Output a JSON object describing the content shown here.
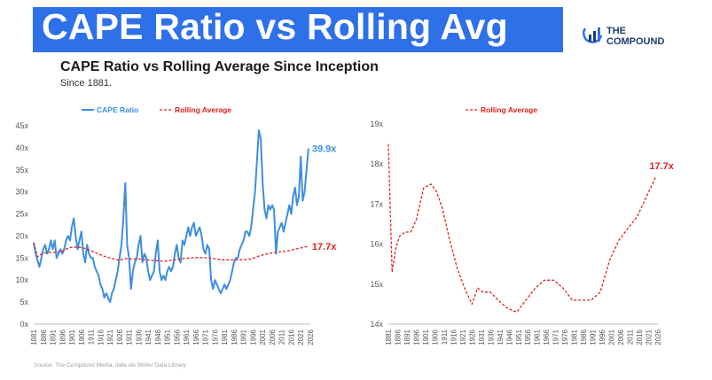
{
  "header": {
    "banner_title": "CAPE Ratio vs Rolling Avg",
    "subtitle": "CAPE Ratio vs Rolling Average Since Inception",
    "subnote": "Since 1881.",
    "logo_line1": "THE",
    "logo_line2": "COMPOUND",
    "source": "Source: The Compound Media, data via Shiller Data Library"
  },
  "colors": {
    "banner": "#2e70e8",
    "cape": "#3d8ee0",
    "rolling": "#e02020"
  },
  "chart_data": [
    {
      "type": "line",
      "title": "",
      "legend": [
        "CAPE Ratio",
        "Rolling Average"
      ],
      "legend_position": "top",
      "ylim": [
        0,
        45
      ],
      "yticks": [
        "0x",
        "5x",
        "10x",
        "15x",
        "20x",
        "25x",
        "30x",
        "35x",
        "40x",
        "45x"
      ],
      "xlim": [
        1881,
        2026
      ],
      "xticks": [
        "1881",
        "1886",
        "1891",
        "1896",
        "1901",
        "1906",
        "1911",
        "1916",
        "1921",
        "1926",
        "1931",
        "1936",
        "1941",
        "1946",
        "1951",
        "1956",
        "1961",
        "1966",
        "1971",
        "1976",
        "1981",
        "1986",
        "1991",
        "1996",
        "2001",
        "2006",
        "2011",
        "2016",
        "2021",
        "2026"
      ],
      "series": [
        {
          "name": "CAPE Ratio",
          "x": [
            1881,
            1882,
            1883,
            1884,
            1885,
            1886,
            1887,
            1888,
            1889,
            1890,
            1891,
            1892,
            1893,
            1894,
            1895,
            1896,
            1897,
            1898,
            1899,
            1900,
            1901,
            1902,
            1903,
            1904,
            1905,
            1906,
            1907,
            1908,
            1909,
            1910,
            1911,
            1912,
            1913,
            1914,
            1915,
            1916,
            1917,
            1918,
            1919,
            1920,
            1921,
            1922,
            1923,
            1924,
            1925,
            1926,
            1927,
            1928,
            1929,
            1930,
            1931,
            1932,
            1933,
            1934,
            1935,
            1936,
            1937,
            1938,
            1939,
            1940,
            1941,
            1942,
            1943,
            1944,
            1945,
            1946,
            1947,
            1948,
            1949,
            1950,
            1951,
            1952,
            1953,
            1954,
            1955,
            1956,
            1957,
            1958,
            1959,
            1960,
            1961,
            1962,
            1963,
            1964,
            1965,
            1966,
            1967,
            1968,
            1969,
            1970,
            1971,
            1972,
            1973,
            1974,
            1975,
            1976,
            1977,
            1978,
            1979,
            1980,
            1981,
            1982,
            1983,
            1984,
            1985,
            1986,
            1987,
            1988,
            1989,
            1990,
            1991,
            1992,
            1993,
            1994,
            1995,
            1996,
            1997,
            1998,
            1999,
            2000,
            2001,
            2002,
            2003,
            2004,
            2005,
            2006,
            2007,
            2008,
            2009,
            2010,
            2011,
            2012,
            2013,
            2014,
            2015,
            2016,
            2017,
            2018,
            2019,
            2020,
            2021,
            2022,
            2023,
            2024,
            2025
          ],
          "values": [
            18.5,
            16,
            14.5,
            13,
            15,
            17,
            18,
            16,
            17,
            19,
            17,
            19,
            15,
            16,
            17,
            16,
            17,
            19,
            20,
            19,
            22,
            24,
            20,
            17,
            19,
            21,
            16,
            14,
            18,
            16,
            15,
            15,
            13,
            12,
            11,
            9,
            8,
            6,
            7,
            6,
            5,
            7,
            8,
            10,
            12,
            15,
            18,
            24,
            32,
            18,
            15,
            8,
            12,
            14,
            15,
            18,
            20,
            14,
            16,
            15,
            12,
            10,
            11,
            12,
            16,
            19,
            12,
            10,
            11,
            10,
            12,
            13,
            12,
            13,
            16,
            18,
            15,
            14,
            19,
            18,
            20,
            22,
            20,
            22,
            23,
            20,
            21,
            22,
            20,
            17,
            16,
            18,
            17,
            10,
            8,
            10,
            9,
            8,
            7,
            8,
            9,
            8,
            9,
            10,
            12,
            14,
            15,
            15,
            17,
            18,
            19,
            21,
            21,
            20,
            22,
            26,
            30,
            37,
            44,
            42,
            32,
            26,
            24,
            27,
            26,
            27,
            26,
            16,
            21,
            22,
            23,
            21,
            23,
            25,
            27,
            25,
            29,
            31,
            27,
            29,
            38,
            28,
            30,
            35,
            39.9
          ]
        },
        {
          "name": "Rolling Average",
          "x": [
            1881,
            1883,
            1885,
            1887,
            1890,
            1893,
            1896,
            1900,
            1904,
            1907,
            1910,
            1914,
            1918,
            1922,
            1926,
            1929,
            1932,
            1936,
            1940,
            1945,
            1950,
            1955,
            1960,
            1965,
            1970,
            1975,
            1980,
            1985,
            1990,
            1995,
            2000,
            2005,
            2010,
            2015,
            2020,
            2025
          ],
          "values": [
            18.5,
            15.3,
            15.9,
            16.2,
            16.3,
            16.3,
            16.6,
            17.4,
            17.5,
            17.3,
            16.9,
            16.1,
            15.4,
            14.9,
            14.5,
            14.9,
            14.8,
            14.8,
            14.6,
            14.4,
            14.3,
            14.6,
            14.9,
            15.1,
            15.1,
            14.9,
            14.6,
            14.6,
            14.6,
            14.8,
            15.6,
            16.1,
            16.4,
            16.7,
            17.2,
            17.7
          ]
        }
      ],
      "end_labels": {
        "cape": "39.9x",
        "rolling": "17.7x"
      }
    },
    {
      "type": "line",
      "title": "",
      "legend": [
        "Rolling Average"
      ],
      "legend_position": "top",
      "ylim": [
        14,
        19
      ],
      "yticks": [
        "14x",
        "15x",
        "16x",
        "17x",
        "18x",
        "19x"
      ],
      "xlim": [
        1881,
        2026
      ],
      "xticks": [
        "1881",
        "1886",
        "1891",
        "1896",
        "1901",
        "1906",
        "1911",
        "1916",
        "1921",
        "1926",
        "1931",
        "1936",
        "1941",
        "1946",
        "1951",
        "1956",
        "1961",
        "1966",
        "1971",
        "1976",
        "1981",
        "1986",
        "1991",
        "1996",
        "2001",
        "2006",
        "2011",
        "2016",
        "2021",
        "2026"
      ],
      "series": [
        {
          "name": "Rolling Average",
          "x": [
            1881,
            1883,
            1885,
            1887,
            1890,
            1893,
            1896,
            1900,
            1904,
            1907,
            1910,
            1914,
            1918,
            1922,
            1926,
            1929,
            1932,
            1936,
            1940,
            1945,
            1950,
            1955,
            1960,
            1965,
            1970,
            1975,
            1980,
            1985,
            1990,
            1995,
            2000,
            2005,
            2010,
            2015,
            2020,
            2025
          ],
          "values": [
            18.5,
            15.3,
            15.9,
            16.2,
            16.3,
            16.3,
            16.6,
            17.4,
            17.5,
            17.3,
            16.9,
            16.1,
            15.4,
            14.9,
            14.5,
            14.9,
            14.8,
            14.8,
            14.6,
            14.4,
            14.3,
            14.6,
            14.9,
            15.1,
            15.1,
            14.9,
            14.6,
            14.6,
            14.6,
            14.8,
            15.6,
            16.1,
            16.4,
            16.7,
            17.2,
            17.7
          ]
        }
      ],
      "end_labels": {
        "rolling": "17.7x"
      }
    }
  ]
}
